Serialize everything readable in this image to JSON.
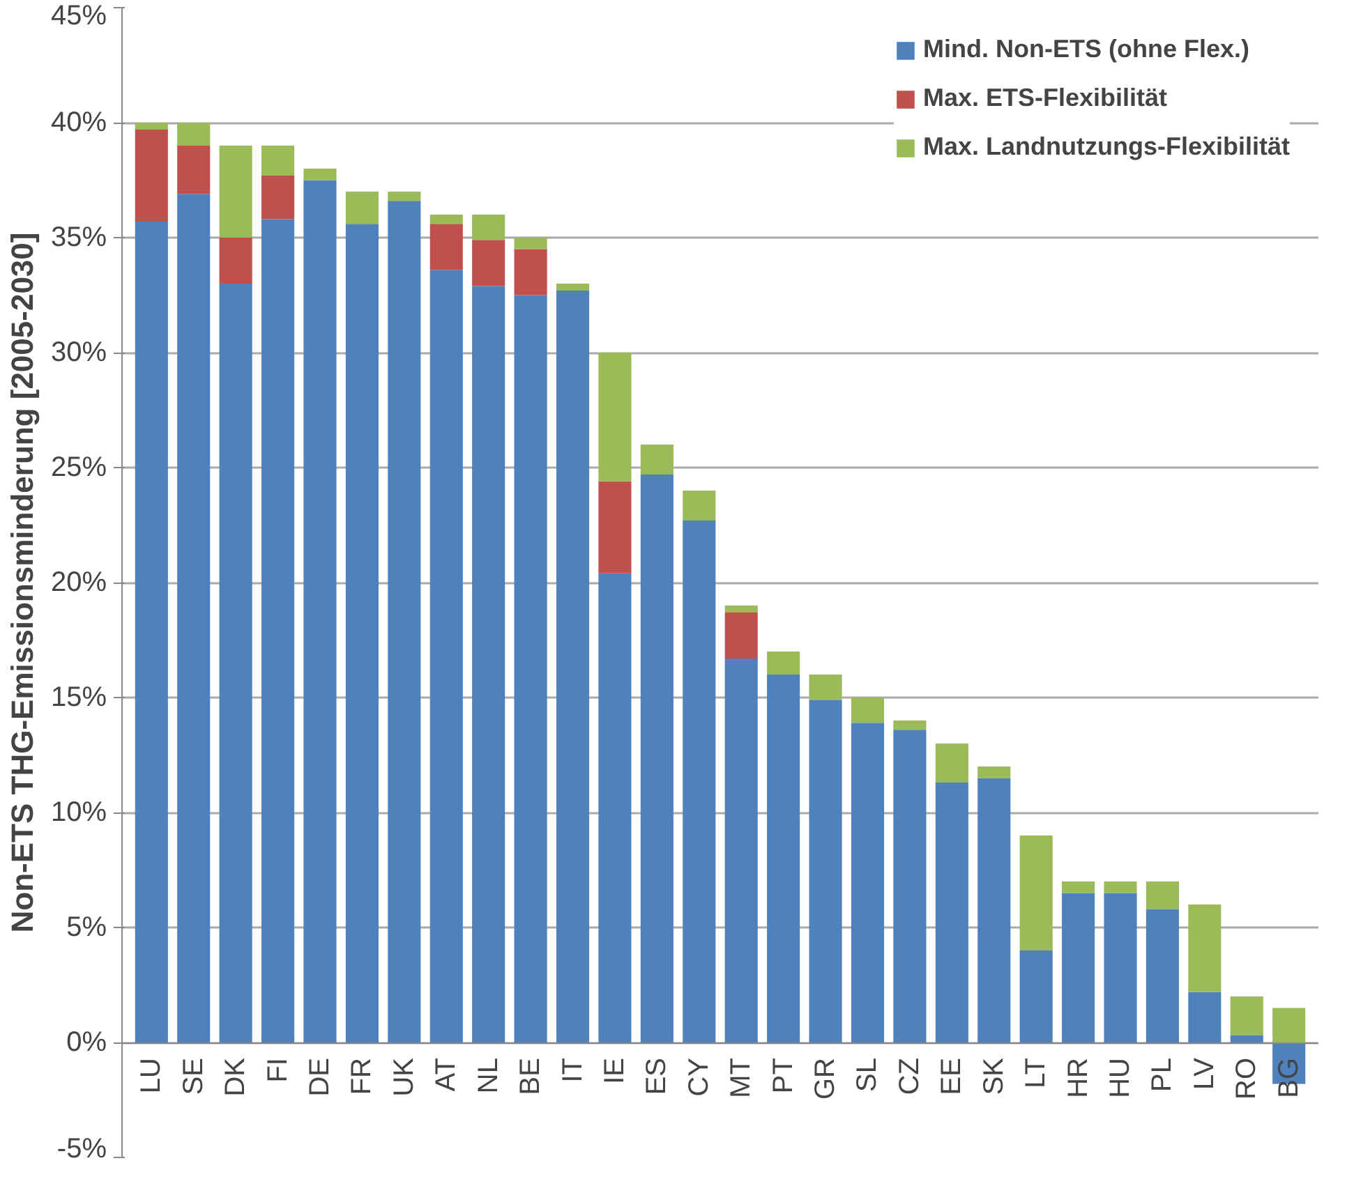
{
  "chart_data": {
    "type": "bar",
    "stacked": true,
    "ylabel": "Non-ETS THG-Emissionsminderung [2005-2030]",
    "categories": [
      "LU",
      "SE",
      "DK",
      "FI",
      "DE",
      "FR",
      "UK",
      "AT",
      "NL",
      "BE",
      "IT",
      "IE",
      "ES",
      "CY",
      "MT",
      "PT",
      "GR",
      "SL",
      "CZ",
      "EE",
      "SK",
      "LT",
      "HR",
      "HU",
      "PL",
      "LV",
      "RO",
      "BG"
    ],
    "series": [
      {
        "name": "Mind. Non-ETS (ohne Flex.)",
        "color": "#4f81bd",
        "values": [
          35.7,
          36.9,
          33.0,
          35.8,
          37.5,
          35.6,
          36.6,
          33.6,
          32.9,
          32.5,
          32.7,
          20.4,
          24.7,
          22.7,
          16.7,
          16.0,
          14.9,
          13.9,
          13.6,
          11.3,
          11.5,
          4.0,
          6.5,
          6.5,
          5.8,
          2.2,
          0.3,
          -1.8
        ]
      },
      {
        "name": "Max. ETS-Flexibilität",
        "color": "#c0504d",
        "values": [
          4.0,
          2.1,
          2.0,
          1.9,
          0,
          0,
          0,
          2.0,
          2.0,
          2.0,
          0,
          4.0,
          0,
          0,
          2.0,
          0,
          0,
          0,
          0,
          0,
          0,
          0,
          0,
          0,
          0,
          0,
          0,
          0
        ]
      },
      {
        "name": "Max. Landnutzungs-Flexibilität",
        "color": "#9bbb59",
        "values": [
          0.3,
          1.0,
          4.0,
          1.3,
          0.5,
          1.4,
          0.4,
          0.4,
          1.1,
          0.5,
          0.3,
          5.6,
          1.3,
          1.3,
          0.3,
          1.0,
          1.1,
          1.1,
          0.4,
          1.7,
          0.5,
          5.0,
          0.5,
          0.5,
          1.2,
          3.8,
          1.7,
          1.5
        ]
      }
    ],
    "ylim": [
      -5,
      45
    ],
    "yticks": [
      {
        "value": -5,
        "label": "-5%"
      },
      {
        "value": 0,
        "label": "0%"
      },
      {
        "value": 5,
        "label": "5%"
      },
      {
        "value": 10,
        "label": "10%"
      },
      {
        "value": 15,
        "label": "15%"
      },
      {
        "value": 20,
        "label": "20%"
      },
      {
        "value": 25,
        "label": "25%"
      },
      {
        "value": 30,
        "label": "30%"
      },
      {
        "value": 35,
        "label": "35%"
      },
      {
        "value": 40,
        "label": "40%"
      },
      {
        "value": 45,
        "label": "45%"
      }
    ],
    "grid": "y",
    "legend": "top right"
  }
}
